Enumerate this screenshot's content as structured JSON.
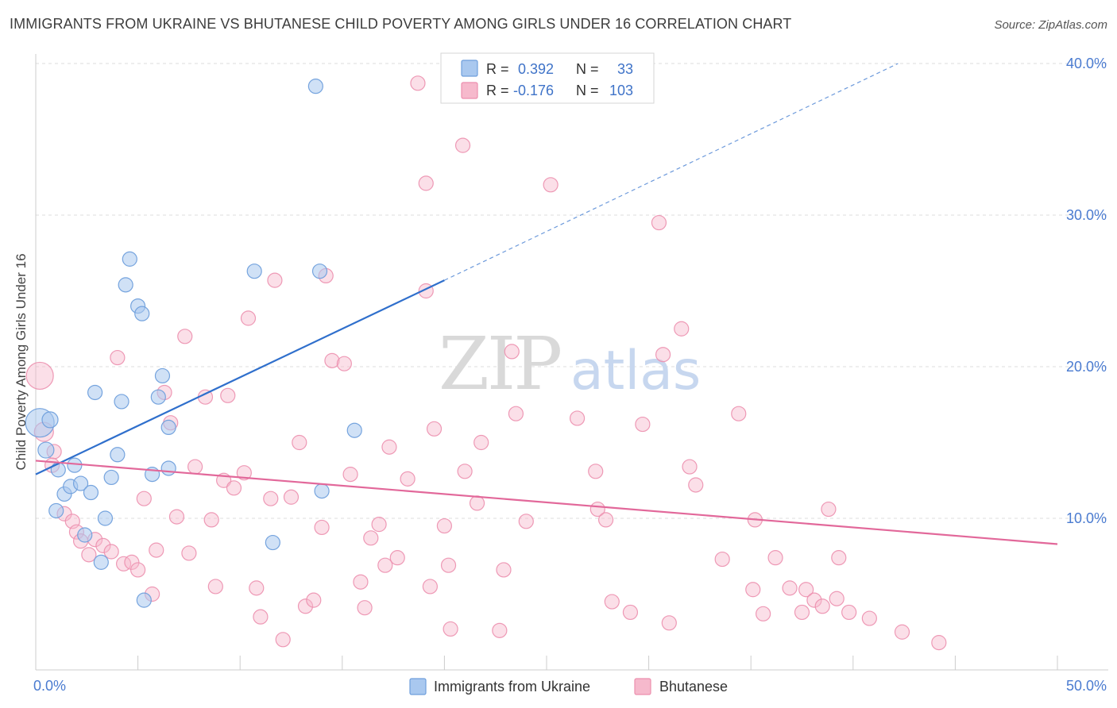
{
  "title": "IMMIGRANTS FROM UKRAINE VS BHUTANESE CHILD POVERTY AMONG GIRLS UNDER 16 CORRELATION CHART",
  "source": "Source: ZipAtlas.com",
  "watermark": {
    "part1": "ZIP",
    "part2": "atlas"
  },
  "legend": {
    "rows": [
      {
        "r_label": "R =",
        "r_value": "0.392",
        "n_label": "N =",
        "n_value": "33"
      },
      {
        "r_label": "R =",
        "r_value": "-0.176",
        "n_label": "N =",
        "n_value": "103"
      }
    ]
  },
  "bottom_legend": [
    "Immigrants from Ukraine",
    "Bhutanese"
  ],
  "colors": {
    "ukraine_fill": "#a9c8ef",
    "ukraine_stroke": "#6f9fdc",
    "ukraine_line": "#2f6fcc",
    "bhutanese_fill": "#f6b9cc",
    "bhutanese_stroke": "#ec8fae",
    "bhutanese_line": "#e2689a",
    "grid": "#dcdcdc",
    "axis_text": "#4a7bd0"
  },
  "chart_data": {
    "type": "scatter",
    "title": "IMMIGRANTS FROM UKRAINE VS BHUTANESE CHILD POVERTY AMONG GIRLS UNDER 16 CORRELATION CHART",
    "xlabel": "",
    "ylabel": "Child Poverty Among Girls Under 16",
    "xlim": [
      0,
      50
    ],
    "ylim": [
      0,
      42
    ],
    "x_tick_labels": [
      "0.0%",
      "50.0%"
    ],
    "y_ticks": [
      10,
      20,
      30,
      40
    ],
    "y_tick_labels": [
      "10.0%",
      "20.0%",
      "30.0%",
      "40.0%"
    ],
    "grid": true,
    "legend_position": "top-center",
    "series": [
      {
        "name": "Immigrants from Ukraine",
        "R": 0.392,
        "N": 33,
        "trend": {
          "x0": 0,
          "y0": 12.9,
          "x1": 20,
          "y1": 25.7,
          "dashed_to_x": 42.2,
          "dashed_to_y": 40.0
        },
        "points": [
          [
            0.2,
            16.3,
            18
          ],
          [
            0.7,
            16.5,
            10
          ],
          [
            0.5,
            14.5,
            10
          ],
          [
            1.0,
            10.5,
            9
          ],
          [
            1.1,
            13.2,
            9
          ],
          [
            1.4,
            11.6,
            9
          ],
          [
            1.7,
            12.1,
            9
          ],
          [
            1.9,
            13.5,
            9
          ],
          [
            2.2,
            12.3,
            9
          ],
          [
            2.4,
            8.9,
            9
          ],
          [
            2.7,
            11.7,
            9
          ],
          [
            2.9,
            18.3,
            9
          ],
          [
            3.2,
            7.1,
            9
          ],
          [
            3.4,
            10.0,
            9
          ],
          [
            3.7,
            12.7,
            9
          ],
          [
            4.0,
            14.2,
            9
          ],
          [
            4.2,
            17.7,
            9
          ],
          [
            4.4,
            25.4,
            9
          ],
          [
            4.6,
            27.1,
            9
          ],
          [
            5.0,
            24.0,
            9
          ],
          [
            5.2,
            23.5,
            9
          ],
          [
            5.3,
            4.6,
            9
          ],
          [
            5.7,
            12.9,
            9
          ],
          [
            6.0,
            18.0,
            9
          ],
          [
            6.2,
            19.4,
            9
          ],
          [
            6.5,
            16.0,
            9
          ],
          [
            6.5,
            13.3,
            9
          ],
          [
            10.7,
            26.3,
            9
          ],
          [
            11.6,
            8.4,
            9
          ],
          [
            13.7,
            38.5,
            9
          ],
          [
            13.9,
            26.3,
            9
          ],
          [
            14.0,
            11.8,
            9
          ],
          [
            15.6,
            15.8,
            9
          ]
        ]
      },
      {
        "name": "Bhutanese",
        "R": -0.176,
        "N": 103,
        "trend": {
          "x0": 0,
          "y0": 13.8,
          "x1": 50,
          "y1": 8.3
        },
        "points": [
          [
            0.2,
            19.4,
            17
          ],
          [
            0.4,
            15.7,
            12
          ],
          [
            0.9,
            14.4,
            9
          ],
          [
            0.8,
            13.5,
            9
          ],
          [
            1.4,
            10.3,
            9
          ],
          [
            1.8,
            9.8,
            9
          ],
          [
            2.0,
            9.1,
            9
          ],
          [
            2.2,
            8.5,
            9
          ],
          [
            2.6,
            7.6,
            9
          ],
          [
            2.9,
            8.6,
            9
          ],
          [
            3.3,
            8.2,
            9
          ],
          [
            3.7,
            7.8,
            9
          ],
          [
            4.0,
            20.6,
            9
          ],
          [
            4.3,
            7.0,
            9
          ],
          [
            4.7,
            7.1,
            9
          ],
          [
            5.0,
            6.6,
            9
          ],
          [
            5.3,
            11.3,
            9
          ],
          [
            5.7,
            5.0,
            9
          ],
          [
            5.9,
            7.9,
            9
          ],
          [
            6.3,
            18.3,
            9
          ],
          [
            6.6,
            16.3,
            9
          ],
          [
            6.9,
            10.1,
            9
          ],
          [
            7.3,
            22.0,
            9
          ],
          [
            7.5,
            7.7,
            9
          ],
          [
            7.8,
            13.4,
            9
          ],
          [
            8.3,
            18.0,
            9
          ],
          [
            8.6,
            9.9,
            9
          ],
          [
            8.8,
            5.5,
            9
          ],
          [
            9.2,
            12.5,
            9
          ],
          [
            9.4,
            18.1,
            9
          ],
          [
            9.7,
            12.0,
            9
          ],
          [
            10.2,
            13.0,
            9
          ],
          [
            10.4,
            23.2,
            9
          ],
          [
            10.8,
            5.4,
            9
          ],
          [
            11.0,
            3.5,
            9
          ],
          [
            11.5,
            11.3,
            9
          ],
          [
            11.7,
            25.7,
            9
          ],
          [
            12.1,
            2.0,
            9
          ],
          [
            12.5,
            11.4,
            9
          ],
          [
            12.9,
            15.0,
            9
          ],
          [
            13.2,
            4.2,
            9
          ],
          [
            13.6,
            4.6,
            9
          ],
          [
            14.0,
            9.4,
            9
          ],
          [
            14.2,
            26.0,
            9
          ],
          [
            14.5,
            20.4,
            9
          ],
          [
            15.1,
            20.2,
            9
          ],
          [
            15.4,
            12.9,
            9
          ],
          [
            15.9,
            5.8,
            9
          ],
          [
            16.1,
            4.1,
            9
          ],
          [
            16.4,
            8.7,
            9
          ],
          [
            16.8,
            9.6,
            9
          ],
          [
            17.1,
            6.9,
            9
          ],
          [
            17.3,
            14.7,
            9
          ],
          [
            17.7,
            7.4,
            9
          ],
          [
            18.2,
            12.6,
            9
          ],
          [
            18.7,
            38.7,
            9
          ],
          [
            19.1,
            25.0,
            9
          ],
          [
            19.1,
            32.1,
            9
          ],
          [
            19.5,
            15.9,
            9
          ],
          [
            19.3,
            5.5,
            9
          ],
          [
            20.0,
            9.5,
            9
          ],
          [
            20.2,
            6.9,
            9
          ],
          [
            20.3,
            2.7,
            9
          ],
          [
            20.9,
            34.6,
            9
          ],
          [
            21.0,
            13.1,
            9
          ],
          [
            21.6,
            11.0,
            9
          ],
          [
            21.8,
            15.0,
            9
          ],
          [
            22.7,
            2.6,
            9
          ],
          [
            22.9,
            6.6,
            9
          ],
          [
            23.3,
            21.0,
            9
          ],
          [
            23.5,
            16.9,
            9
          ],
          [
            24.0,
            9.8,
            9
          ],
          [
            25.2,
            32.0,
            9
          ],
          [
            26.5,
            16.6,
            9
          ],
          [
            27.4,
            13.1,
            9
          ],
          [
            27.5,
            10.6,
            9
          ],
          [
            27.9,
            9.9,
            9
          ],
          [
            28.2,
            4.5,
            9
          ],
          [
            29.1,
            3.8,
            9
          ],
          [
            29.7,
            16.2,
            9
          ],
          [
            30.5,
            29.5,
            9
          ],
          [
            30.7,
            20.8,
            9
          ],
          [
            31.0,
            3.1,
            9
          ],
          [
            31.6,
            22.5,
            9
          ],
          [
            32.0,
            13.4,
            9
          ],
          [
            32.3,
            12.2,
            9
          ],
          [
            33.6,
            7.3,
            9
          ],
          [
            34.4,
            16.9,
            9
          ],
          [
            35.1,
            5.3,
            9
          ],
          [
            35.2,
            9.9,
            9
          ],
          [
            35.6,
            3.7,
            9
          ],
          [
            36.2,
            7.4,
            9
          ],
          [
            36.9,
            5.4,
            9
          ],
          [
            37.5,
            3.8,
            9
          ],
          [
            37.7,
            5.3,
            9
          ],
          [
            38.1,
            4.6,
            9
          ],
          [
            38.5,
            4.2,
            9
          ],
          [
            38.8,
            10.6,
            9
          ],
          [
            39.2,
            4.7,
            9
          ],
          [
            39.3,
            7.4,
            9
          ],
          [
            39.8,
            3.8,
            9
          ],
          [
            40.8,
            3.4,
            9
          ],
          [
            42.4,
            2.5,
            9
          ],
          [
            44.2,
            1.8,
            9
          ]
        ]
      }
    ]
  }
}
